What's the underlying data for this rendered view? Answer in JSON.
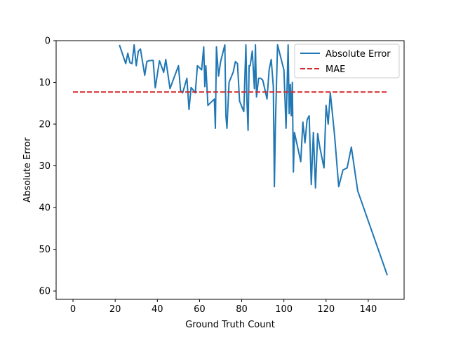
{
  "chart_data": {
    "type": "line",
    "title": "",
    "xlabel": "Ground Truth Count",
    "ylabel": "Absolute Error",
    "xlim": [
      -8,
      157
    ],
    "ylim": [
      62,
      0
    ],
    "y_axis_inverted": true,
    "xticks": [
      0,
      20,
      40,
      60,
      80,
      100,
      120,
      140
    ],
    "yticks": [
      0,
      10,
      20,
      30,
      40,
      50,
      60
    ],
    "grid": false,
    "legend_position": "top-right",
    "series": [
      {
        "name": "Absolute Error",
        "color": "#1f77b4",
        "style": "solid",
        "x": [
          22,
          25,
          26,
          27,
          28,
          29,
          30,
          31,
          32,
          34,
          35,
          36,
          38,
          39,
          41,
          43,
          44,
          46,
          50,
          51,
          52,
          54,
          55,
          56,
          58,
          59,
          61,
          62,
          62.5,
          63,
          64,
          67,
          67.5,
          68,
          69,
          70,
          72,
          72.5,
          73,
          74,
          76,
          77,
          78,
          79,
          81,
          82,
          82.5,
          83,
          83.5,
          84,
          85,
          86,
          86.5,
          87,
          88,
          89,
          90,
          92,
          93,
          94,
          95,
          95.5,
          96,
          97,
          100,
          101,
          102,
          102.5,
          103,
          103.5,
          104,
          104.5,
          105,
          108,
          109,
          110,
          111,
          112,
          113,
          114,
          115,
          116,
          117,
          119,
          120,
          121,
          122,
          124,
          126,
          128,
          130,
          132,
          135,
          149
        ],
        "y": [
          1,
          5.5,
          3,
          5.3,
          5.5,
          1,
          6,
          2.5,
          2,
          8.3,
          5,
          4.8,
          4.7,
          11.3,
          4.8,
          7.6,
          4.5,
          11.5,
          6,
          12,
          12.5,
          9,
          16.5,
          11.2,
          12.5,
          6,
          7,
          1.5,
          11,
          6,
          15.5,
          14,
          21,
          1.5,
          8.5,
          5,
          1,
          18,
          21,
          10,
          7.5,
          5,
          5.5,
          14.5,
          17,
          1,
          14.5,
          21.5,
          6,
          6,
          2.5,
          11.5,
          1,
          13.5,
          9,
          9,
          9.5,
          14,
          7,
          4.5,
          11,
          35,
          20,
          1,
          7,
          21,
          1,
          17.5,
          10.5,
          18,
          10,
          31.5,
          22,
          29,
          19.5,
          24.5,
          19,
          18,
          34.5,
          22,
          35.3,
          22.3,
          25.5,
          30.5,
          15.5,
          20,
          12.5,
          22.5,
          35,
          31,
          30.5,
          25.5,
          36,
          56.2
        ]
      },
      {
        "name": "MAE",
        "color": "#d62728",
        "style": "dashed",
        "x": [
          0,
          149
        ],
        "y": [
          12.3,
          12.3
        ]
      }
    ]
  }
}
